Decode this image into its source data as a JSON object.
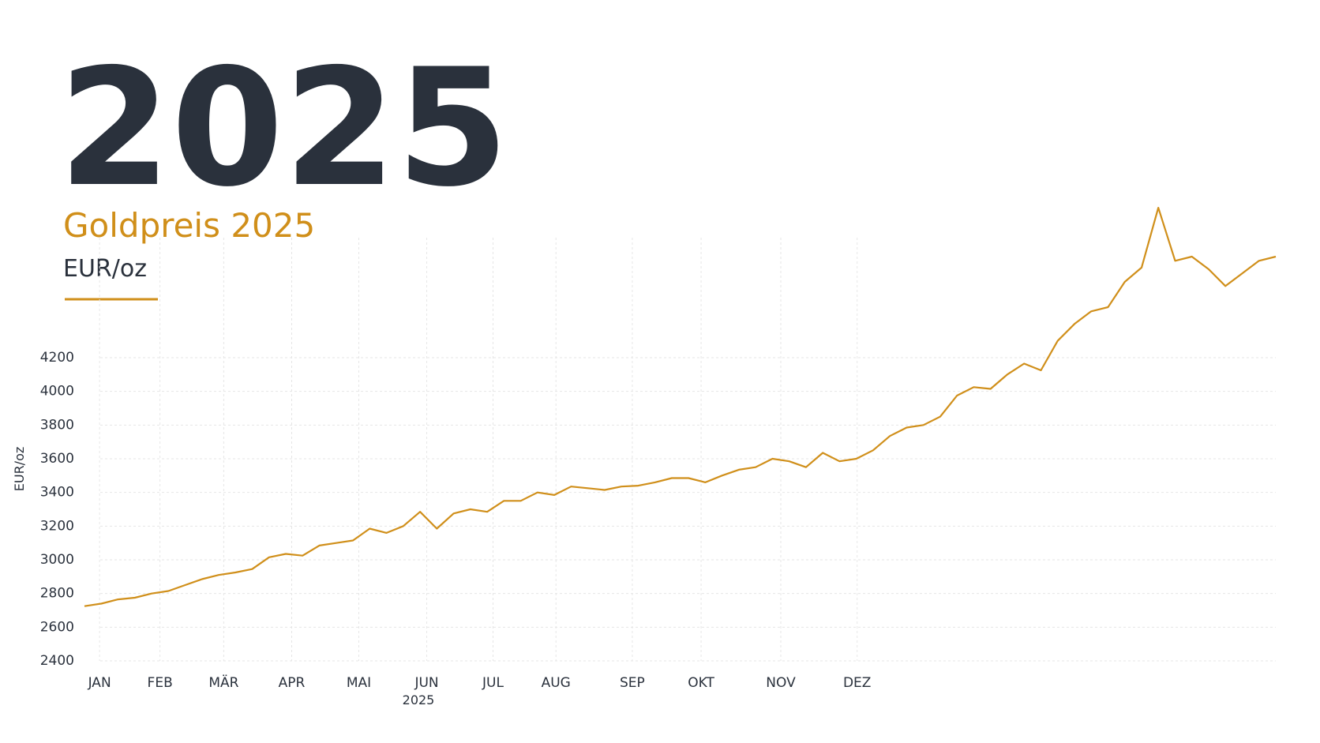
{
  "chart_data": {
    "type": "line",
    "headline": "2025",
    "title": "Goldpreis 2025",
    "subtitle": "EUR/oz",
    "ylabel": "EUR/oz",
    "x_axis_year": "2025",
    "xlim": [
      0,
      71
    ],
    "xticks": [
      {
        "value": 0.9,
        "label": "JAN"
      },
      {
        "value": 4.5,
        "label": "FEB"
      },
      {
        "value": 8.3,
        "label": "MÄR"
      },
      {
        "value": 12.35,
        "label": "APR"
      },
      {
        "value": 16.35,
        "label": "MAI"
      },
      {
        "value": 20.4,
        "label": "JUN"
      },
      {
        "value": 24.35,
        "label": "JUL"
      },
      {
        "value": 28.1,
        "label": "AUG"
      },
      {
        "value": 32.65,
        "label": "SEP"
      },
      {
        "value": 36.75,
        "label": "OKT"
      },
      {
        "value": 41.5,
        "label": "NOV"
      },
      {
        "value": 46.05,
        "label": "DEZ"
      }
    ],
    "ylim": [
      2400,
      5100
    ],
    "yticks": [
      2400,
      2600,
      2800,
      3000,
      3200,
      3400,
      3600,
      3800,
      4000,
      4200
    ],
    "grid": true,
    "series": [
      {
        "name": "Goldpreis",
        "color": "#d08f1a",
        "values": [
          2725,
          2740,
          2765,
          2775,
          2800,
          2815,
          2850,
          2885,
          2910,
          2925,
          2945,
          3015,
          3035,
          3025,
          3085,
          3100,
          3115,
          3185,
          3160,
          3200,
          3285,
          3185,
          3275,
          3300,
          3285,
          3350,
          3350,
          3400,
          3385,
          3435,
          3425,
          3415,
          3435,
          3440,
          3460,
          3485,
          3485,
          3460,
          3500,
          3535,
          3550,
          3600,
          3585,
          3550,
          3635,
          3585,
          3600,
          3650,
          3735,
          3785,
          3800,
          3850,
          3975,
          4025,
          4015,
          4100,
          4165,
          4125,
          4300,
          4400,
          4475,
          4500,
          4650,
          4735,
          5090,
          4775,
          4800,
          4725,
          4625,
          4700,
          4775,
          4800
        ]
      }
    ]
  }
}
